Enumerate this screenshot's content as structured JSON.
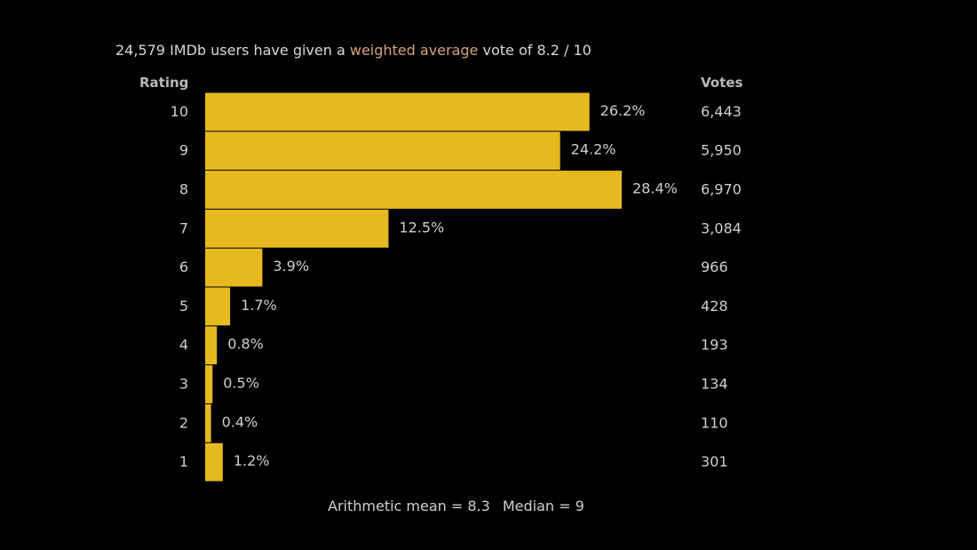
{
  "header": {
    "vote_count": "24,579",
    "text_before_link": " IMDb users have given a ",
    "link_text": "weighted average",
    "text_after_link": " vote of 8.2 / 10"
  },
  "columns": {
    "rating": "Rating",
    "votes": "Votes"
  },
  "footer": {
    "mean": "Arithmetic mean = 8.3",
    "median": "Median = 9"
  },
  "colors": {
    "bar": "#E6B91E",
    "link": "#D6A07C",
    "text": "#CFCFCF"
  },
  "chart_data": {
    "type": "bar",
    "orientation": "horizontal",
    "title": "24,579 IMDb users have given a weighted average vote of 8.2 / 10",
    "xlabel": "",
    "ylabel": "Rating",
    "categories": [
      "10",
      "9",
      "8",
      "7",
      "6",
      "5",
      "4",
      "3",
      "2",
      "1"
    ],
    "values": [
      26.2,
      24.2,
      28.4,
      12.5,
      3.9,
      1.7,
      0.8,
      0.5,
      0.4,
      1.2
    ],
    "value_labels": [
      "26.2%",
      "24.2%",
      "28.4%",
      "12.5%",
      "3.9%",
      "1.7%",
      "0.8%",
      "0.5%",
      "0.4%",
      "1.2%"
    ],
    "votes": [
      "6,443",
      "5,950",
      "6,970",
      "3,084",
      "966",
      "428",
      "193",
      "134",
      "110",
      "301"
    ],
    "xlim": [
      0,
      28.4
    ],
    "grid": false,
    "legend": "none"
  }
}
